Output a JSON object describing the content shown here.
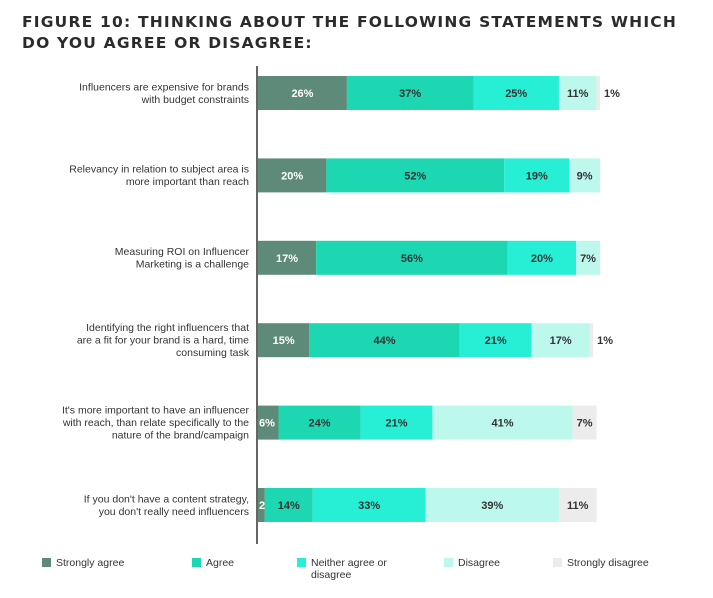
{
  "title": "FIGURE 10: THINKING ABOUT THE FOLLOWING STATEMENTS WHICH DO YOU AGREE OR DISAGREE:",
  "colors": {
    "Strongly agree": "#5e8b79",
    "Agree": "#1dd7b3",
    "Neither agree or disagree": "#27efd5",
    "Disagree": "#bdf8ec",
    "Strongly disagree": "#ececec"
  },
  "chart_data": {
    "type": "bar",
    "orientation": "horizontal",
    "stacked": true,
    "title": "FIGURE 10: THINKING ABOUT THE FOLLOWING STATEMENTS WHICH DO YOU AGREE OR DISAGREE:",
    "legend_position": "bottom",
    "categories": [
      [
        "Influencers are expensive for brands",
        "with budget constraints"
      ],
      [
        "Relevancy in relation to subject area is",
        "more important than reach"
      ],
      [
        "Measuring ROI on Influencer",
        "Marketing is a challenge"
      ],
      [
        "Identifying the right influencers that",
        "are a fit for your brand is a hard, time",
        "consuming task"
      ],
      [
        "It's more important to have an influencer",
        "with reach, than relate specifically to the",
        "nature of the brand/campaign"
      ],
      [
        "If you don't have a content strategy,",
        "you don't really need influencers"
      ]
    ],
    "series": [
      {
        "name": "Strongly agree",
        "values": [
          26,
          20,
          17,
          15,
          6,
          2
        ]
      },
      {
        "name": "Agree",
        "values": [
          37,
          52,
          56,
          44,
          24,
          14
        ]
      },
      {
        "name": "Neither agree or disagree",
        "values": [
          25,
          19,
          20,
          21,
          21,
          33
        ]
      },
      {
        "name": "Disagree",
        "values": [
          11,
          9,
          7,
          17,
          41,
          39
        ]
      },
      {
        "name": "Strongly disagree",
        "values": [
          1,
          0,
          0,
          1,
          7,
          11
        ]
      }
    ],
    "data_labels": [
      [
        "26%",
        "37%",
        "25%",
        "11%",
        "1%"
      ],
      [
        "20%",
        "52%",
        "19%",
        "9%",
        ""
      ],
      [
        "17%",
        "56%",
        "20%",
        "7%",
        ""
      ],
      [
        "15%",
        "44%",
        "21%",
        "17%",
        "1%"
      ],
      [
        "6%",
        "24%",
        "21%",
        "41%",
        "7%"
      ],
      [
        "2%",
        "14%",
        "33%",
        "39%",
        "11%"
      ]
    ],
    "xlim": [
      0,
      100
    ]
  },
  "legend": [
    {
      "label": "Strongly agree",
      "color": "#5e8b79"
    },
    {
      "label": "Agree",
      "color": "#1dd7b3"
    },
    {
      "label": "Neither agree or disagree",
      "label_lines": [
        "Neither agree or",
        "disagree"
      ],
      "color": "#27efd5"
    },
    {
      "label": "Disagree",
      "color": "#bdf8ec"
    },
    {
      "label": "Strongly disagree",
      "color": "#ececec"
    }
  ]
}
